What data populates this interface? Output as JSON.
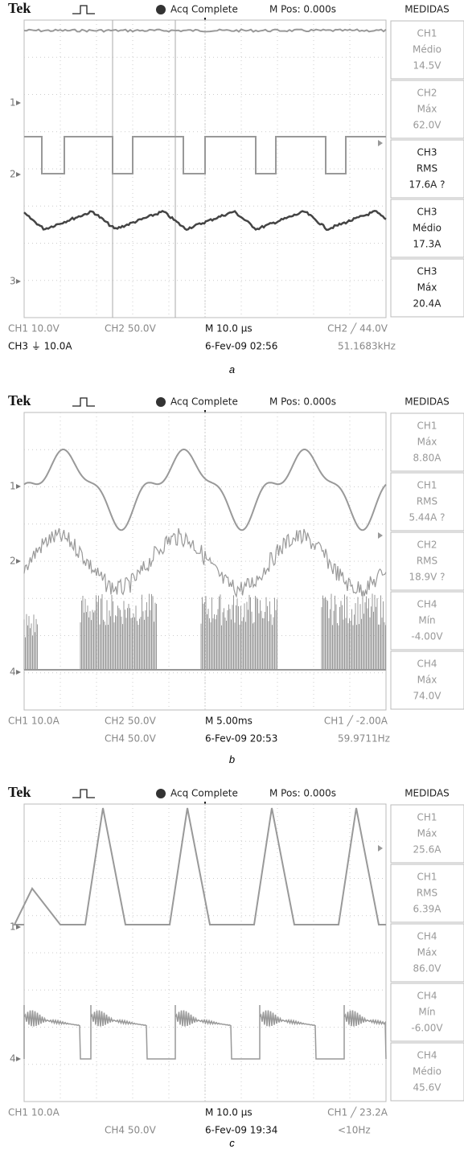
{
  "screens": [
    {
      "header": {
        "brand": "Tek",
        "status": "Acq Complete",
        "position": "M Pos: 0.000s",
        "panel_title": "MEDIDAS"
      },
      "measurements": [
        {
          "channel": "CH1",
          "label": "Médio",
          "value": "14.5V",
          "active": false
        },
        {
          "channel": "CH2",
          "label": "Máx",
          "value": "62.0V",
          "active": false
        },
        {
          "channel": "CH3",
          "label": "RMS",
          "value": "17.6A ?",
          "active": true
        },
        {
          "channel": "CH3",
          "label": "Médio",
          "value": "17.3A",
          "active": true
        },
        {
          "channel": "CH3",
          "label": "Máx",
          "value": "20.4A",
          "active": true
        }
      ],
      "channel_markers": [
        "1",
        "2",
        "3"
      ],
      "footer": {
        "row1": {
          "left": "CH1  10.0V",
          "mid": "CH2  50.0V",
          "time": "M 10.0 µs",
          "trigger": "CH2 ╱ 44.0V"
        },
        "row2": {
          "left": "CH3 ⏚ 10.0A",
          "date": "6-Fev-09 02:56",
          "freq": "51.1683kHz"
        }
      },
      "caption": "a"
    },
    {
      "header": {
        "brand": "Tek",
        "status": "Acq Complete",
        "position": "M Pos: 0.000s",
        "panel_title": "MEDIDAS"
      },
      "measurements": [
        {
          "channel": "CH1",
          "label": "Máx",
          "value": "8.80A",
          "active": false
        },
        {
          "channel": "CH1",
          "label": "RMS",
          "value": "5.44A ?",
          "active": false
        },
        {
          "channel": "CH2",
          "label": "RMS",
          "value": "18.9V ?",
          "active": false
        },
        {
          "channel": "CH4",
          "label": "Mín",
          "value": "-4.00V",
          "active": false
        },
        {
          "channel": "CH4",
          "label": "Máx",
          "value": "74.0V",
          "active": false
        }
      ],
      "channel_markers": [
        "1",
        "2",
        "4"
      ],
      "footer": {
        "row1": {
          "left": "CH1  10.0A",
          "mid": "CH2  50.0V",
          "time": "M 5.00ms",
          "trigger": "CH1 ╱ -2.00A"
        },
        "row2": {
          "mid": "CH4  50.0V",
          "date": "6-Fev-09 20:53",
          "freq": "59.9711Hz"
        }
      },
      "caption": "b"
    },
    {
      "header": {
        "brand": "Tek",
        "status": "Acq Complete",
        "position": "M Pos: 0.000s",
        "panel_title": "MEDIDAS"
      },
      "measurements": [
        {
          "channel": "CH1",
          "label": "Máx",
          "value": "25.6A",
          "active": false
        },
        {
          "channel": "CH1",
          "label": "RMS",
          "value": "6.39A",
          "active": false
        },
        {
          "channel": "CH4",
          "label": "Máx",
          "value": "86.0V",
          "active": false
        },
        {
          "channel": "CH4",
          "label": "Mín",
          "value": "-6.00V",
          "active": false
        },
        {
          "channel": "CH4",
          "label": "Médio",
          "value": "45.6V",
          "active": false
        }
      ],
      "channel_markers": [
        "1",
        "4"
      ],
      "footer": {
        "row1": {
          "left": "CH1  10.0A",
          "time": "M 10.0 µs",
          "trigger": "CH1 ╱ 23.2A"
        },
        "row2": {
          "mid": "CH4  50.0V",
          "date": "6-Fev-09 19:34",
          "freq": "<10Hz"
        }
      },
      "caption": "c"
    }
  ]
}
